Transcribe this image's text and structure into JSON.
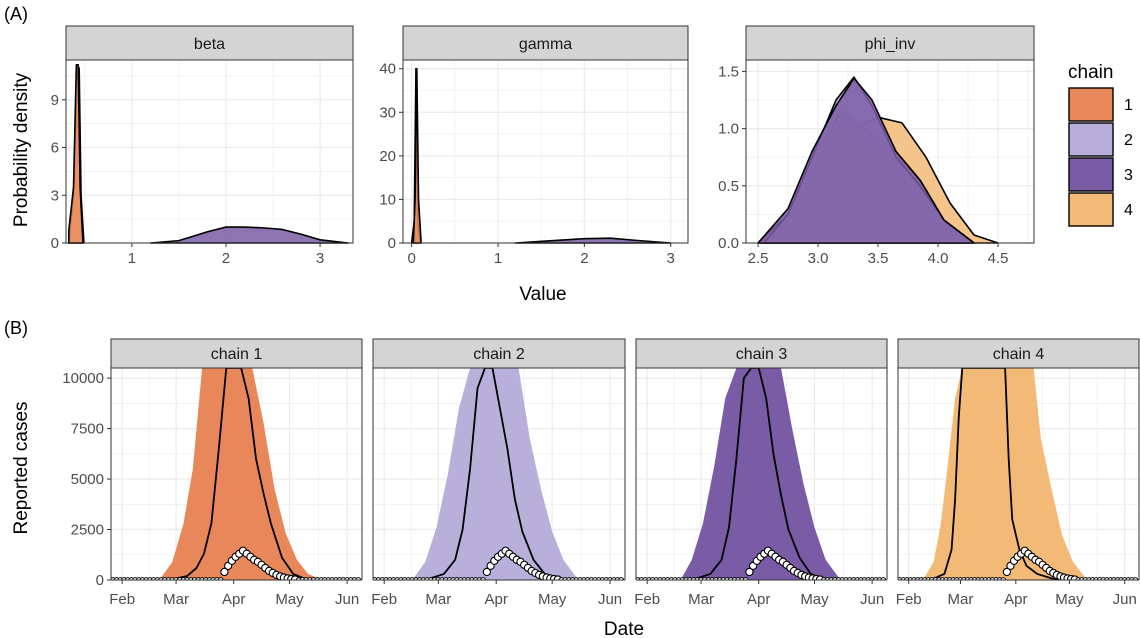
{
  "panel_labels": {
    "a": "(A)",
    "b": "(B)"
  },
  "colors": {
    "chain1": "#E8885A",
    "chain2": "#B8B0DA",
    "chain3": "#7A5CA6",
    "chain4": "#F2BA76",
    "strip": "#D4D4D4",
    "grid": "#EBEBEB"
  },
  "chart_data": [
    {
      "type": "area",
      "subtype": "faceted density",
      "ylabel": "Probability density",
      "xlabel": "Value",
      "legend": {
        "title": "chain",
        "entries": [
          "1",
          "2",
          "3",
          "4"
        ],
        "placement": "right"
      },
      "facets": [
        {
          "name": "beta",
          "xlim": [
            0.3,
            3.35
          ],
          "ylim": [
            0,
            11.5
          ],
          "xticks": [
            1,
            2,
            3
          ],
          "yticks": [
            0,
            3,
            6,
            9
          ],
          "series": [
            {
              "chain": "4",
              "x": [
                0.33,
                0.38,
                0.42,
                0.44,
                0.46,
                0.49
              ],
              "y": [
                0.0,
                3.0,
                11.0,
                11.0,
                3.0,
                0.0
              ]
            },
            {
              "chain": "1",
              "x": [
                0.33,
                0.38,
                0.41,
                0.43,
                0.45,
                0.48
              ],
              "y": [
                0.8,
                3.5,
                11.2,
                11.2,
                3.5,
                0.0
              ]
            },
            {
              "chain": "3",
              "x": [
                1.2,
                1.5,
                1.8,
                2.0,
                2.2,
                2.4,
                2.6,
                2.8,
                3.0,
                3.3
              ],
              "y": [
                0.0,
                0.15,
                0.7,
                1.0,
                1.0,
                0.95,
                0.85,
                0.55,
                0.2,
                0.0
              ]
            }
          ]
        },
        {
          "name": "gamma",
          "xlim": [
            -0.1,
            3.2
          ],
          "ylim": [
            0,
            42
          ],
          "xticks": [
            0,
            1,
            2,
            3
          ],
          "yticks": [
            0,
            10,
            20,
            30,
            40
          ],
          "series": [
            {
              "chain": "4",
              "x": [
                0.0,
                0.03,
                0.05,
                0.07,
                0.1
              ],
              "y": [
                0.0,
                5.0,
                40.0,
                5.0,
                0.0
              ]
            },
            {
              "chain": "1",
              "x": [
                0.02,
                0.04,
                0.06,
                0.08,
                0.11
              ],
              "y": [
                0.0,
                10.0,
                40.0,
                10.0,
                0.0
              ]
            },
            {
              "chain": "3",
              "x": [
                1.2,
                1.6,
                2.0,
                2.3,
                2.6,
                3.0
              ],
              "y": [
                0.0,
                0.5,
                1.0,
                1.1,
                0.6,
                0.0
              ]
            }
          ]
        },
        {
          "name": "phi_inv",
          "xlim": [
            2.4,
            4.8
          ],
          "ylim": [
            0,
            1.6
          ],
          "xticks": [
            2.5,
            3.0,
            3.5,
            4.0,
            4.5
          ],
          "yticks": [
            0.0,
            0.5,
            1.0,
            1.5
          ],
          "series": [
            {
              "chain": "4",
              "x": [
                2.5,
                2.7,
                2.9,
                3.1,
                3.3,
                3.5,
                3.7,
                3.9,
                4.1,
                4.3,
                4.5
              ],
              "y": [
                0.0,
                0.1,
                0.45,
                0.85,
                1.0,
                1.1,
                1.05,
                0.75,
                0.35,
                0.07,
                0.0
              ]
            },
            {
              "chain": "2",
              "x": [
                2.55,
                2.75,
                2.95,
                3.15,
                3.3,
                3.45,
                3.65,
                3.85,
                4.05,
                4.3
              ],
              "y": [
                0.0,
                0.25,
                0.75,
                1.25,
                1.45,
                1.2,
                0.75,
                0.5,
                0.2,
                0.0
              ]
            },
            {
              "chain": "3",
              "x": [
                2.5,
                2.75,
                2.95,
                3.15,
                3.3,
                3.45,
                3.65,
                3.85,
                4.05,
                4.3
              ],
              "y": [
                0.0,
                0.3,
                0.8,
                1.2,
                1.44,
                1.25,
                0.8,
                0.55,
                0.2,
                0.0
              ]
            },
            {
              "chain": "1",
              "x": [
                2.5,
                2.75,
                2.95,
                3.2,
                3.45,
                3.65,
                3.85,
                4.05,
                4.3
              ],
              "y": [
                0.0,
                0.25,
                0.75,
                1.15,
                0.95,
                0.8,
                0.55,
                0.2,
                0.0
              ]
            }
          ]
        }
      ]
    },
    {
      "type": "area",
      "subtype": "faceted predictive band with observations",
      "ylabel": "Reported cases",
      "xlabel": "Date",
      "xticks": [
        "Feb",
        "Mar",
        "Apr",
        "May",
        "Jun"
      ],
      "xtick_days": [
        0,
        29,
        60,
        90,
        121
      ],
      "xlim_days": [
        -6,
        129
      ],
      "ylim": [
        0,
        10500
      ],
      "yticks": [
        0,
        2500,
        5000,
        7500,
        10000
      ],
      "observed": {
        "days": [
          55,
          57,
          59,
          61,
          63,
          65,
          67,
          69,
          71,
          73,
          75,
          77,
          79,
          81,
          83,
          85,
          87,
          89,
          91,
          93
        ],
        "cases": [
          400,
          700,
          950,
          1150,
          1300,
          1450,
          1300,
          1150,
          1000,
          900,
          750,
          600,
          450,
          350,
          250,
          180,
          120,
          80,
          50,
          25
        ]
      },
      "facets": [
        {
          "name": "chain 1",
          "chain": "1",
          "band_days": [
            20,
            27,
            33,
            38,
            43,
            48,
            60,
            66,
            70,
            76,
            82,
            88,
            94,
            100,
            108
          ],
          "band_upper": [
            0,
            900,
            2800,
            5500,
            10500,
            10500,
            10500,
            10500,
            10500,
            7800,
            4500,
            2300,
            1000,
            300,
            0
          ],
          "median_days": [
            25,
            35,
            40,
            44,
            48,
            52,
            56,
            58,
            60,
            64,
            68,
            72,
            76,
            80,
            86,
            92,
            100
          ],
          "median": [
            0,
            200,
            600,
            1300,
            2800,
            6500,
            10500,
            10500,
            10500,
            10500,
            9000,
            6000,
            4300,
            2800,
            1100,
            300,
            0
          ]
        },
        {
          "name": "chain 2",
          "chain": "2",
          "band_days": [
            15,
            22,
            28,
            34,
            40,
            46,
            58,
            66,
            72,
            78,
            84,
            90,
            96,
            104
          ],
          "band_upper": [
            0,
            900,
            2600,
            5200,
            8500,
            10500,
            10500,
            10500,
            10500,
            7000,
            4500,
            2400,
            1000,
            0
          ],
          "median_days": [
            22,
            32,
            38,
            42,
            46,
            50,
            54,
            58,
            62,
            66,
            70,
            74,
            80,
            86,
            94
          ],
          "median": [
            0,
            300,
            1000,
            2500,
            5500,
            9500,
            10500,
            10500,
            8500,
            6500,
            4000,
            2400,
            1000,
            300,
            0
          ]
        },
        {
          "name": "chain 3",
          "chain": "3",
          "band_days": [
            18,
            24,
            30,
            36,
            42,
            48,
            60,
            66,
            72,
            78,
            84,
            90,
            96,
            104
          ],
          "band_upper": [
            0,
            1000,
            2800,
            5600,
            9000,
            10500,
            10500,
            10500,
            10500,
            7500,
            4800,
            2600,
            1000,
            0
          ],
          "median_days": [
            24,
            34,
            40,
            44,
            48,
            52,
            56,
            60,
            64,
            68,
            72,
            76,
            82,
            88,
            96
          ],
          "median": [
            0,
            300,
            1000,
            2600,
            6000,
            10000,
            10500,
            10500,
            9000,
            6200,
            4200,
            2500,
            1100,
            300,
            0
          ]
        },
        {
          "name": "chain 4",
          "chain": "4",
          "band_days": [
            8,
            14,
            18,
            22,
            26,
            30,
            60,
            66,
            70,
            74,
            80,
            86,
            92,
            100
          ],
          "band_upper": [
            0,
            900,
            2800,
            5800,
            9000,
            10500,
            10500,
            10500,
            10500,
            7000,
            4500,
            2200,
            900,
            0
          ],
          "median_days": [
            12,
            20,
            24,
            26,
            28,
            30,
            52,
            54,
            56,
            58,
            62,
            66,
            72,
            80,
            88
          ],
          "median": [
            0,
            300,
            1500,
            4000,
            8000,
            10500,
            10500,
            10500,
            6000,
            3000,
            1500,
            700,
            300,
            80,
            0
          ]
        }
      ]
    }
  ]
}
